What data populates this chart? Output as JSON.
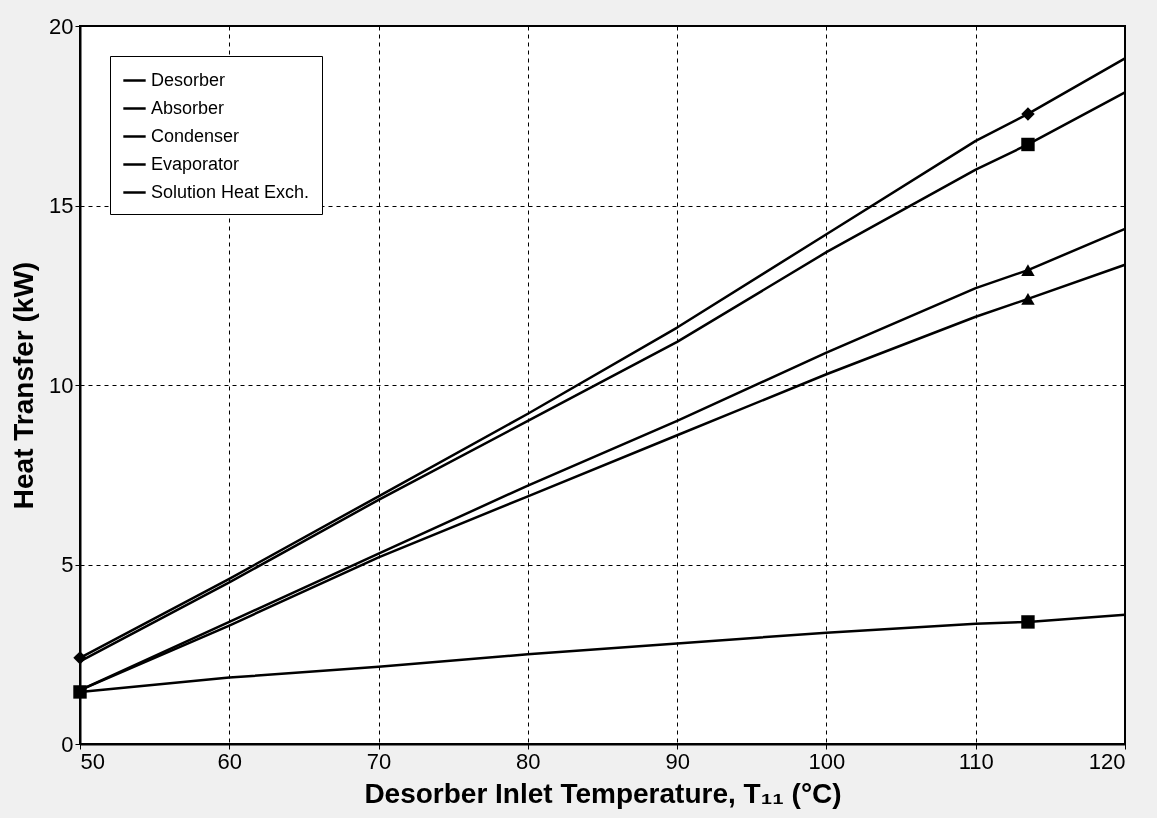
{
  "chart_data": {
    "type": "line",
    "xlabel": "Desorber Inlet Temperature, T₁₁  (°C)",
    "ylabel": "Heat Transfer (kW)",
    "xlim": [
      50,
      120
    ],
    "xticks": [
      50,
      60,
      70,
      80,
      90,
      100,
      110,
      120
    ],
    "ylim": [
      0,
      20
    ],
    "yticks": [
      0,
      5,
      10,
      15,
      20
    ],
    "grid": true,
    "legend": "top left",
    "line_style": "solid",
    "series": [
      {
        "name": "Desorber",
        "color": "#000000",
        "x": [
          50,
          60,
          70,
          80,
          90,
          100,
          110,
          113.5,
          120
        ],
        "values": [
          2.4,
          4.6,
          6.9,
          9.2,
          11.6,
          14.2,
          16.8,
          17.55,
          19.1
        ]
      },
      {
        "name": "Absorber",
        "color": "#000000",
        "x": [
          50,
          60,
          70,
          80,
          90,
          100,
          110,
          113.5,
          120
        ],
        "values": [
          2.3,
          4.5,
          6.8,
          9.0,
          11.2,
          13.7,
          16.0,
          16.7,
          18.15
        ]
      },
      {
        "name": "Condenser",
        "color": "#000000",
        "x": [
          50,
          60,
          70,
          80,
          90,
          100,
          110,
          113.5,
          120
        ],
        "values": [
          1.5,
          3.4,
          5.3,
          7.2,
          9.0,
          10.9,
          12.7,
          13.2,
          14.35
        ]
      },
      {
        "name": "Evaporator",
        "color": "#000000",
        "x": [
          50,
          60,
          70,
          80,
          90,
          100,
          110,
          113.5,
          120
        ],
        "values": [
          1.5,
          3.3,
          5.2,
          6.9,
          8.6,
          10.3,
          11.9,
          12.4,
          13.35
        ]
      },
      {
        "name": "Solution Heat Exch.",
        "color": "#000000",
        "x": [
          50,
          60,
          70,
          80,
          90,
          100,
          110,
          113.5,
          120
        ],
        "values": [
          1.45,
          1.85,
          2.15,
          2.5,
          2.8,
          3.1,
          3.35,
          3.4,
          3.6
        ]
      },
      {
        "color": "#000000",
        "type": "scatter",
        "marker": "diamond",
        "x": [
          50,
          113.5
        ],
        "values": [
          2.4,
          17.55
        ]
      },
      {
        "color": "#000000",
        "type": "scatter",
        "marker": "square",
        "x": [
          113.5
        ],
        "values": [
          16.7
        ]
      },
      {
        "color": "#000000",
        "type": "scatter",
        "marker": "triangle",
        "x": [
          113.5
        ],
        "values": [
          13.2
        ]
      },
      {
        "color": "#000000",
        "type": "scatter",
        "marker": "triangle",
        "x": [
          113.5
        ],
        "values": [
          12.4
        ]
      },
      {
        "color": "#000000",
        "type": "scatter",
        "marker": "square",
        "x": [
          50,
          113.5
        ],
        "values": [
          1.45,
          3.4
        ]
      }
    ]
  }
}
